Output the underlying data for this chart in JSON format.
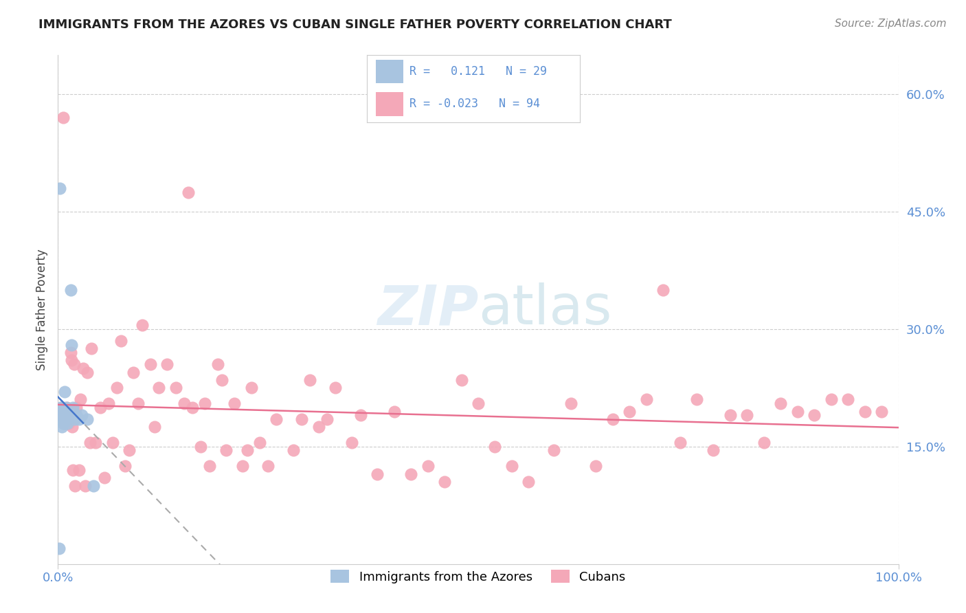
{
  "title": "IMMIGRANTS FROM THE AZORES VS CUBAN SINGLE FATHER POVERTY CORRELATION CHART",
  "source": "Source: ZipAtlas.com",
  "ylabel": "Single Father Poverty",
  "ytick_vals": [
    0.15,
    0.3,
    0.45,
    0.6
  ],
  "xlim": [
    0.0,
    1.0
  ],
  "ylim": [
    0.0,
    0.65
  ],
  "legend_r_azores": "0.121",
  "legend_n_azores": "29",
  "legend_r_cuban": "-0.023",
  "legend_n_cuban": "94",
  "azores_color": "#a8c4e0",
  "cuban_color": "#f4a8b8",
  "trendline_azores_color": "#8aaabb",
  "trendline_cuban_color": "#e87090",
  "background_color": "#ffffff",
  "azores_x": [
    0.001,
    0.002,
    0.003,
    0.003,
    0.004,
    0.004,
    0.005,
    0.005,
    0.006,
    0.006,
    0.007,
    0.007,
    0.008,
    0.008,
    0.009,
    0.01,
    0.01,
    0.011,
    0.012,
    0.013,
    0.015,
    0.016,
    0.018,
    0.02,
    0.022,
    0.025,
    0.028,
    0.035,
    0.042
  ],
  "azores_y": [
    0.02,
    0.48,
    0.2,
    0.19,
    0.195,
    0.185,
    0.19,
    0.175,
    0.2,
    0.18,
    0.185,
    0.18,
    0.22,
    0.195,
    0.19,
    0.19,
    0.2,
    0.18,
    0.185,
    0.19,
    0.35,
    0.28,
    0.2,
    0.185,
    0.19,
    0.185,
    0.19,
    0.185,
    0.1
  ],
  "cuban_x": [
    0.004,
    0.005,
    0.006,
    0.008,
    0.009,
    0.01,
    0.011,
    0.012,
    0.013,
    0.015,
    0.016,
    0.017,
    0.018,
    0.019,
    0.02,
    0.022,
    0.025,
    0.027,
    0.03,
    0.032,
    0.035,
    0.038,
    0.04,
    0.045,
    0.05,
    0.055,
    0.06,
    0.065,
    0.07,
    0.075,
    0.08,
    0.085,
    0.09,
    0.095,
    0.1,
    0.11,
    0.115,
    0.12,
    0.13,
    0.14,
    0.15,
    0.155,
    0.16,
    0.17,
    0.175,
    0.18,
    0.19,
    0.195,
    0.2,
    0.21,
    0.22,
    0.225,
    0.23,
    0.24,
    0.25,
    0.26,
    0.28,
    0.29,
    0.3,
    0.31,
    0.32,
    0.33,
    0.35,
    0.36,
    0.38,
    0.4,
    0.42,
    0.44,
    0.46,
    0.48,
    0.5,
    0.52,
    0.54,
    0.56,
    0.59,
    0.61,
    0.64,
    0.66,
    0.68,
    0.7,
    0.72,
    0.74,
    0.76,
    0.78,
    0.8,
    0.82,
    0.84,
    0.86,
    0.88,
    0.9,
    0.92,
    0.94,
    0.96,
    0.98
  ],
  "cuban_y": [
    0.2,
    0.19,
    0.57,
    0.18,
    0.185,
    0.2,
    0.195,
    0.19,
    0.18,
    0.27,
    0.26,
    0.175,
    0.12,
    0.255,
    0.1,
    0.2,
    0.12,
    0.21,
    0.25,
    0.1,
    0.245,
    0.155,
    0.275,
    0.155,
    0.2,
    0.11,
    0.205,
    0.155,
    0.225,
    0.285,
    0.125,
    0.145,
    0.245,
    0.205,
    0.305,
    0.255,
    0.175,
    0.225,
    0.255,
    0.225,
    0.205,
    0.475,
    0.2,
    0.15,
    0.205,
    0.125,
    0.255,
    0.235,
    0.145,
    0.205,
    0.125,
    0.145,
    0.225,
    0.155,
    0.125,
    0.185,
    0.145,
    0.185,
    0.235,
    0.175,
    0.185,
    0.225,
    0.155,
    0.19,
    0.115,
    0.195,
    0.115,
    0.125,
    0.105,
    0.235,
    0.205,
    0.15,
    0.125,
    0.105,
    0.145,
    0.205,
    0.125,
    0.185,
    0.195,
    0.21,
    0.35,
    0.155,
    0.21,
    0.145,
    0.19,
    0.19,
    0.155,
    0.205,
    0.195,
    0.19,
    0.21,
    0.21,
    0.195,
    0.195
  ]
}
